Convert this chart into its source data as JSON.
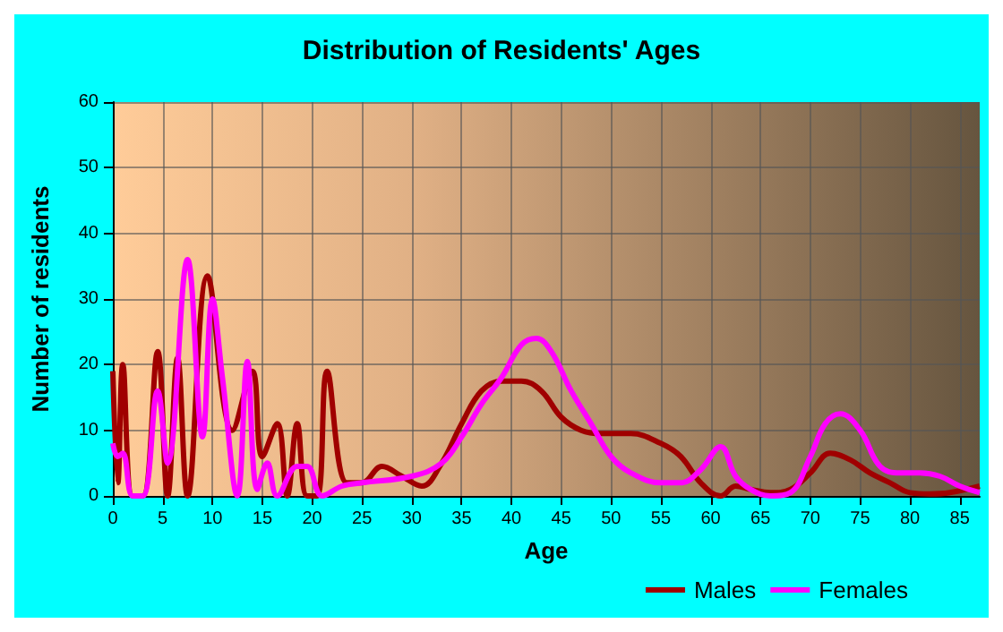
{
  "chart_data": {
    "type": "line",
    "title": "Distribution of Residents' Ages",
    "xlabel": "Age",
    "ylabel": "Number of residents",
    "xlim": [
      0,
      87
    ],
    "xticks": [
      0,
      5,
      10,
      15,
      20,
      25,
      30,
      35,
      40,
      45,
      50,
      55,
      60,
      65,
      70,
      75,
      80,
      85
    ],
    "ylim": [
      0,
      60
    ],
    "yticks": [
      0,
      10,
      20,
      30,
      40,
      50,
      60
    ],
    "grid": true,
    "legend": "bottom right",
    "marker": "none",
    "line_style": "solid",
    "series": [
      {
        "name": "Males",
        "color": "#a00000",
        "x": [
          0,
          0.5,
          1,
          2,
          3,
          4.5,
          5.5,
          6.5,
          7.5,
          9.5,
          12,
          14,
          15,
          16.5,
          17.5,
          18.5,
          19.5,
          20.5,
          21.5,
          23.5,
          25,
          27,
          29,
          31,
          33,
          35,
          37,
          39,
          41,
          43,
          45,
          47,
          49,
          52,
          55,
          57,
          59,
          61,
          62.5,
          64,
          66,
          68,
          70,
          72,
          74,
          76,
          78,
          80,
          82,
          84,
          87
        ],
        "values": [
          19,
          2,
          20,
          0,
          0,
          22,
          0,
          21,
          0,
          33.5,
          10,
          19,
          6,
          11,
          0,
          11,
          0,
          0,
          19,
          2,
          2,
          4.5,
          3,
          1.5,
          5,
          11,
          16,
          17.5,
          17.5,
          16,
          12,
          10,
          9.5,
          9.5,
          8,
          6,
          2,
          0,
          1.5,
          1,
          0.5,
          1,
          3.5,
          6.5,
          5.5,
          3.5,
          2,
          0.5,
          0.3,
          0.5,
          1.5
        ]
      },
      {
        "name": "Females",
        "color": "#ff00ff",
        "x": [
          0,
          0.5,
          1,
          2,
          3,
          4.5,
          5.5,
          7.5,
          9,
          10,
          11,
          12.5,
          13.5,
          14.5,
          15.5,
          16.5,
          18.5,
          19.5,
          21,
          23,
          25,
          30,
          33,
          35,
          37,
          39,
          41,
          42.5,
          44,
          46,
          48,
          50,
          52,
          55,
          57,
          59,
          61,
          62.5,
          64,
          66,
          68,
          70,
          71.5,
          73,
          75,
          77,
          79,
          81,
          83,
          85,
          87
        ],
        "values": [
          8,
          6,
          6.5,
          0,
          0,
          16,
          5,
          36,
          9,
          30,
          18,
          0,
          20.5,
          1,
          5,
          0,
          4.5,
          4.5,
          0,
          1.5,
          2,
          3,
          5,
          9,
          14,
          18,
          23,
          24,
          22,
          16,
          11,
          6,
          3.5,
          2,
          2,
          4,
          7.5,
          3,
          1,
          0,
          0.5,
          6,
          11,
          12.5,
          10,
          4.5,
          3.5,
          3.5,
          3,
          1.5,
          0.5
        ]
      }
    ]
  }
}
